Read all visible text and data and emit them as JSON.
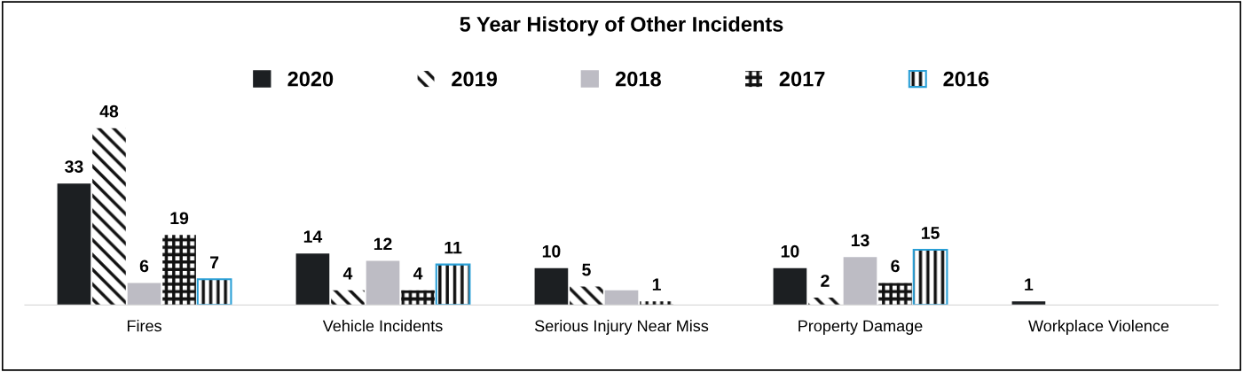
{
  "chart_data": {
    "type": "bar",
    "title": "5 Year History of Other Incidents",
    "categories": [
      "Fires",
      "Vehicle Incidents",
      "Serious Injury Near Miss",
      "Property Damage",
      "Workplace Violence"
    ],
    "series": [
      {
        "name": "2020",
        "color": "#1c1f22",
        "values": [
          33,
          14,
          10,
          10,
          1
        ],
        "value_labels": [
          "33",
          "14",
          "10",
          "10",
          "1"
        ]
      },
      {
        "name": "2019",
        "color": "#111111",
        "values": [
          48,
          4,
          5,
          2,
          null
        ],
        "value_labels": [
          "48",
          "4",
          "5",
          "2",
          null
        ]
      },
      {
        "name": "2018",
        "color": "#bdbcc4",
        "values": [
          6,
          12,
          4,
          13,
          null
        ],
        "value_labels": [
          "6",
          "12",
          null,
          "13",
          null
        ]
      },
      {
        "name": "2017",
        "color": "#111111",
        "values": [
          19,
          4,
          1,
          6,
          null
        ],
        "value_labels": [
          "19",
          "4",
          "1",
          "6",
          null
        ]
      },
      {
        "name": "2016",
        "color": "#2a9fd6",
        "values": [
          7,
          11,
          null,
          15,
          null
        ],
        "value_labels": [
          "7",
          "11",
          null,
          "15",
          null
        ]
      }
    ],
    "legend": "top",
    "grid": false
  }
}
